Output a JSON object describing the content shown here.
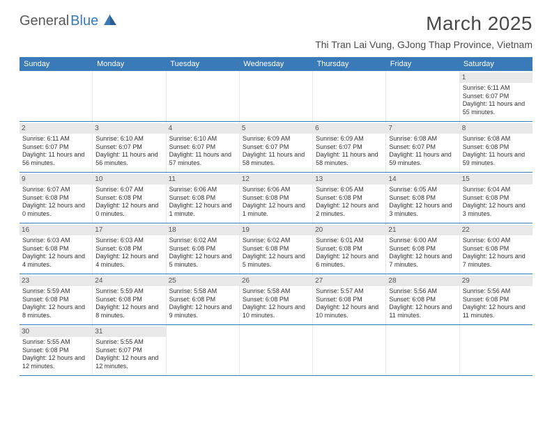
{
  "logo": {
    "text1": "General",
    "text2": "Blue"
  },
  "title": "March 2025",
  "location": "Thi Tran Lai Vung, GJong Thap Province, Vietnam",
  "weekdays": [
    "Sunday",
    "Monday",
    "Tuesday",
    "Wednesday",
    "Thursday",
    "Friday",
    "Saturday"
  ],
  "colors": {
    "header_bar": "#3a7ab8",
    "daynum_bg": "#e8e8e8",
    "row_divider": "#3a7ab8",
    "text": "#333333"
  },
  "weeks": [
    [
      null,
      null,
      null,
      null,
      null,
      null,
      {
        "n": "1",
        "sr": "Sunrise: 6:11 AM",
        "ss": "Sunset: 6:07 PM",
        "dl": "Daylight: 11 hours and 55 minutes."
      }
    ],
    [
      {
        "n": "2",
        "sr": "Sunrise: 6:11 AM",
        "ss": "Sunset: 6:07 PM",
        "dl": "Daylight: 11 hours and 56 minutes."
      },
      {
        "n": "3",
        "sr": "Sunrise: 6:10 AM",
        "ss": "Sunset: 6:07 PM",
        "dl": "Daylight: 11 hours and 56 minutes."
      },
      {
        "n": "4",
        "sr": "Sunrise: 6:10 AM",
        "ss": "Sunset: 6:07 PM",
        "dl": "Daylight: 11 hours and 57 minutes."
      },
      {
        "n": "5",
        "sr": "Sunrise: 6:09 AM",
        "ss": "Sunset: 6:07 PM",
        "dl": "Daylight: 11 hours and 58 minutes."
      },
      {
        "n": "6",
        "sr": "Sunrise: 6:09 AM",
        "ss": "Sunset: 6:07 PM",
        "dl": "Daylight: 11 hours and 58 minutes."
      },
      {
        "n": "7",
        "sr": "Sunrise: 6:08 AM",
        "ss": "Sunset: 6:07 PM",
        "dl": "Daylight: 11 hours and 59 minutes."
      },
      {
        "n": "8",
        "sr": "Sunrise: 6:08 AM",
        "ss": "Sunset: 6:08 PM",
        "dl": "Daylight: 11 hours and 59 minutes."
      }
    ],
    [
      {
        "n": "9",
        "sr": "Sunrise: 6:07 AM",
        "ss": "Sunset: 6:08 PM",
        "dl": "Daylight: 12 hours and 0 minutes."
      },
      {
        "n": "10",
        "sr": "Sunrise: 6:07 AM",
        "ss": "Sunset: 6:08 PM",
        "dl": "Daylight: 12 hours and 0 minutes."
      },
      {
        "n": "11",
        "sr": "Sunrise: 6:06 AM",
        "ss": "Sunset: 6:08 PM",
        "dl": "Daylight: 12 hours and 1 minute."
      },
      {
        "n": "12",
        "sr": "Sunrise: 6:06 AM",
        "ss": "Sunset: 6:08 PM",
        "dl": "Daylight: 12 hours and 1 minute."
      },
      {
        "n": "13",
        "sr": "Sunrise: 6:05 AM",
        "ss": "Sunset: 6:08 PM",
        "dl": "Daylight: 12 hours and 2 minutes."
      },
      {
        "n": "14",
        "sr": "Sunrise: 6:05 AM",
        "ss": "Sunset: 6:08 PM",
        "dl": "Daylight: 12 hours and 3 minutes."
      },
      {
        "n": "15",
        "sr": "Sunrise: 6:04 AM",
        "ss": "Sunset: 6:08 PM",
        "dl": "Daylight: 12 hours and 3 minutes."
      }
    ],
    [
      {
        "n": "16",
        "sr": "Sunrise: 6:03 AM",
        "ss": "Sunset: 6:08 PM",
        "dl": "Daylight: 12 hours and 4 minutes."
      },
      {
        "n": "17",
        "sr": "Sunrise: 6:03 AM",
        "ss": "Sunset: 6:08 PM",
        "dl": "Daylight: 12 hours and 4 minutes."
      },
      {
        "n": "18",
        "sr": "Sunrise: 6:02 AM",
        "ss": "Sunset: 6:08 PM",
        "dl": "Daylight: 12 hours and 5 minutes."
      },
      {
        "n": "19",
        "sr": "Sunrise: 6:02 AM",
        "ss": "Sunset: 6:08 PM",
        "dl": "Daylight: 12 hours and 5 minutes."
      },
      {
        "n": "20",
        "sr": "Sunrise: 6:01 AM",
        "ss": "Sunset: 6:08 PM",
        "dl": "Daylight: 12 hours and 6 minutes."
      },
      {
        "n": "21",
        "sr": "Sunrise: 6:00 AM",
        "ss": "Sunset: 6:08 PM",
        "dl": "Daylight: 12 hours and 7 minutes."
      },
      {
        "n": "22",
        "sr": "Sunrise: 6:00 AM",
        "ss": "Sunset: 6:08 PM",
        "dl": "Daylight: 12 hours and 7 minutes."
      }
    ],
    [
      {
        "n": "23",
        "sr": "Sunrise: 5:59 AM",
        "ss": "Sunset: 6:08 PM",
        "dl": "Daylight: 12 hours and 8 minutes."
      },
      {
        "n": "24",
        "sr": "Sunrise: 5:59 AM",
        "ss": "Sunset: 6:08 PM",
        "dl": "Daylight: 12 hours and 8 minutes."
      },
      {
        "n": "25",
        "sr": "Sunrise: 5:58 AM",
        "ss": "Sunset: 6:08 PM",
        "dl": "Daylight: 12 hours and 9 minutes."
      },
      {
        "n": "26",
        "sr": "Sunrise: 5:58 AM",
        "ss": "Sunset: 6:08 PM",
        "dl": "Daylight: 12 hours and 10 minutes."
      },
      {
        "n": "27",
        "sr": "Sunrise: 5:57 AM",
        "ss": "Sunset: 6:08 PM",
        "dl": "Daylight: 12 hours and 10 minutes."
      },
      {
        "n": "28",
        "sr": "Sunrise: 5:56 AM",
        "ss": "Sunset: 6:08 PM",
        "dl": "Daylight: 12 hours and 11 minutes."
      },
      {
        "n": "29",
        "sr": "Sunrise: 5:56 AM",
        "ss": "Sunset: 6:08 PM",
        "dl": "Daylight: 12 hours and 11 minutes."
      }
    ],
    [
      {
        "n": "30",
        "sr": "Sunrise: 5:55 AM",
        "ss": "Sunset: 6:08 PM",
        "dl": "Daylight: 12 hours and 12 minutes."
      },
      {
        "n": "31",
        "sr": "Sunrise: 5:55 AM",
        "ss": "Sunset: 6:07 PM",
        "dl": "Daylight: 12 hours and 12 minutes."
      },
      null,
      null,
      null,
      null,
      null
    ]
  ]
}
